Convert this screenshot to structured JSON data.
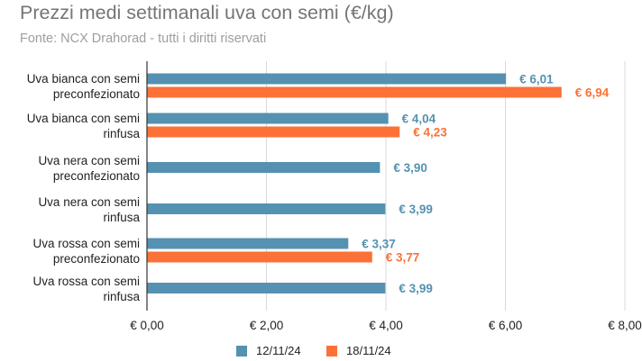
{
  "chart_data": {
    "type": "bar",
    "orientation": "horizontal",
    "title": "Prezzi medi settimanali uva con semi (€/kg)",
    "subtitle": "Fonte: NCX Drahorad - tutti i diritti riservati",
    "categories": [
      [
        "Uva bianca con semi",
        "preconfezionato"
      ],
      [
        "Uva bianca con semi",
        "rinfusa"
      ],
      [
        "Uva nera con semi",
        "preconfezionato"
      ],
      [
        "Uva nera con semi",
        "rinfusa"
      ],
      [
        "Uva rossa con semi",
        "preconfezionato"
      ],
      [
        "Uva rossa con semi",
        "rinfusa"
      ]
    ],
    "series": [
      {
        "name": "12/11/24",
        "color": "#5591b0",
        "values": [
          6.01,
          4.04,
          3.9,
          3.99,
          3.37,
          3.99
        ],
        "labels": [
          "€ 6,01",
          "€ 4,04",
          "€ 3,90",
          "€ 3,99",
          "€ 3,37",
          "€ 3,99"
        ]
      },
      {
        "name": "18/11/24",
        "color": "#fb7136",
        "values": [
          6.94,
          4.23,
          null,
          null,
          3.77,
          null
        ],
        "labels": [
          "€ 6,94",
          "€ 4,23",
          null,
          null,
          "€ 3,77",
          null
        ]
      }
    ],
    "xlim": [
      0,
      8
    ],
    "xticks": [
      0,
      2,
      4,
      6,
      8
    ],
    "xtick_labels": [
      "€ 0,00",
      "€ 2,00",
      "€ 4,00",
      "€ 6,00",
      "€ 8,00"
    ],
    "grid": "vertical",
    "legend_position": "bottom"
  }
}
